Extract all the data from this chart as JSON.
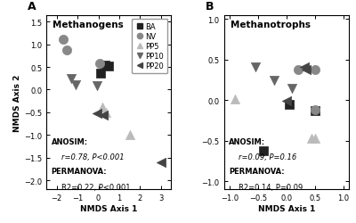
{
  "panel_A": {
    "title": "Methanogens",
    "xlim": [
      -2.5,
      3.5
    ],
    "ylim": [
      -2.2,
      1.65
    ],
    "xticks": [
      -2,
      -1,
      0,
      1,
      2,
      3
    ],
    "yticks": [
      -2.0,
      -1.5,
      -1.0,
      -0.5,
      0.0,
      0.5,
      1.0,
      1.5
    ],
    "xlabel": "NMDS Axis 1",
    "ylabel": "NMDS Axis 2",
    "label": "A",
    "points": {
      "BA": {
        "x": [
          0.1,
          0.3,
          0.5
        ],
        "y": [
          0.37,
          0.55,
          0.52
        ],
        "marker": "s",
        "color": "#222222",
        "size": 55
      },
      "NV": {
        "x": [
          -1.7,
          -1.5,
          0.05
        ],
        "y": [
          1.12,
          0.88,
          0.57
        ],
        "marker": "o",
        "color": "#888888",
        "size": 55
      },
      "PP5": {
        "x": [
          0.2,
          0.35,
          1.5
        ],
        "y": [
          -0.38,
          -0.5,
          -1.0
        ],
        "marker": "^",
        "color": "#bbbbbb",
        "size": 55
      },
      "PP10": {
        "x": [
          -1.3,
          -1.1,
          -0.05
        ],
        "y": [
          0.25,
          0.1,
          0.08
        ],
        "marker": "v",
        "color": "#666666",
        "size": 55
      },
      "PP20": {
        "x": [
          -0.05,
          0.25,
          3.0
        ],
        "y": [
          -0.52,
          -0.57,
          -1.6
        ],
        "marker": "<",
        "color": "#444444",
        "size": 55
      }
    },
    "anosim_bold": "ANOSIM:",
    "anosim_italic": "r=0.78, P<0.001",
    "permanova_bold": "PERMANOVA:",
    "permanova_normal": "R2=0.22, P<0.001"
  },
  "panel_B": {
    "title": "Methanotrophs",
    "xlim": [
      -1.1,
      1.1
    ],
    "ylim": [
      -1.1,
      1.05
    ],
    "xticks": [
      -1.0,
      -0.5,
      0.0,
      0.5,
      1.0
    ],
    "yticks": [
      -1.0,
      -0.5,
      0.0,
      0.5,
      1.0
    ],
    "xlabel": "NMDS Axis 1",
    "ylabel": "",
    "label": "B",
    "points": {
      "BA": {
        "x": [
          -0.4,
          0.05,
          0.5
        ],
        "y": [
          -0.62,
          -0.05,
          -0.13
        ],
        "marker": "s",
        "color": "#222222",
        "size": 55
      },
      "NV": {
        "x": [
          0.2,
          0.5,
          0.5
        ],
        "y": [
          0.37,
          0.37,
          -0.12
        ],
        "marker": "o",
        "color": "#888888",
        "size": 55
      },
      "PP5": {
        "x": [
          -0.9,
          0.45,
          0.5
        ],
        "y": [
          0.01,
          -0.47,
          -0.47
        ],
        "marker": "^",
        "color": "#bbbbbb",
        "size": 55
      },
      "PP10": {
        "x": [
          -0.55,
          -0.22,
          0.1
        ],
        "y": [
          0.41,
          0.24,
          0.14
        ],
        "marker": "v",
        "color": "#666666",
        "size": 55
      },
      "PP20": {
        "x": [
          0.0,
          0.32,
          0.35
        ],
        "y": [
          -0.01,
          0.41,
          0.37
        ],
        "marker": "<",
        "color": "#444444",
        "size": 55
      }
    },
    "anosim_bold": "ANOSIM:",
    "anosim_italic": "r=0.09, P=0.16",
    "permanova_bold": "PERMANOVA:",
    "permanova_normal": "R2=0.14, P=0.09"
  },
  "legend": {
    "entries": [
      "BA",
      "NV",
      "PP5",
      "PP10",
      "PP20"
    ],
    "markers": [
      "s",
      "o",
      "^",
      "v",
      "<"
    ],
    "colors": [
      "#222222",
      "#888888",
      "#bbbbbb",
      "#666666",
      "#444444"
    ]
  },
  "bg_color": "#ffffff",
  "fontsize_title": 7.5,
  "fontsize_label": 6.5,
  "fontsize_tick": 6,
  "fontsize_legend": 6,
  "fontsize_annot": 6
}
